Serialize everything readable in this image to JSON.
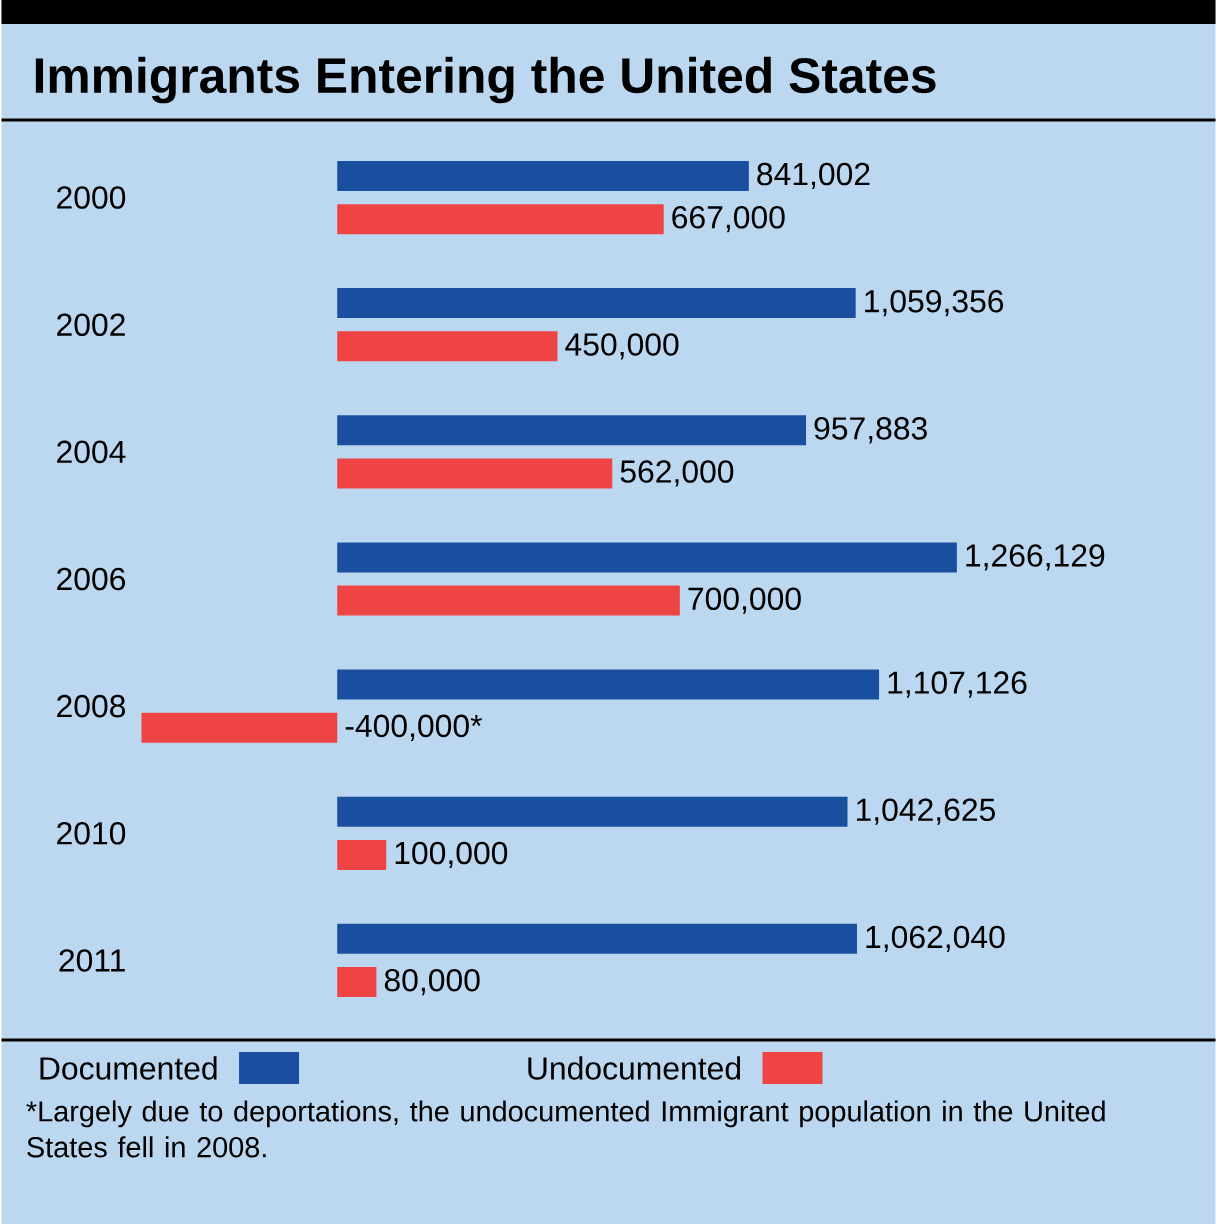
{
  "chart_data": {
    "type": "bar",
    "orientation": "horizontal",
    "title": "Immigrants Entering the United States",
    "categories": [
      "2000",
      "2002",
      "2004",
      "2006",
      "2008",
      "2010",
      "2011"
    ],
    "series": [
      {
        "name": "Documented",
        "color": "#1a4f9f",
        "values": [
          841002,
          1059356,
          957883,
          1266129,
          1107126,
          1042625,
          1062040
        ],
        "value_labels": [
          "841,002",
          "1,059,356",
          "957,883",
          "1,266,129",
          "1,107,126",
          "1,042,625",
          "1,062,040"
        ]
      },
      {
        "name": "Undocumented",
        "color": "#ee4444",
        "values": [
          667000,
          450000,
          562000,
          700000,
          -400000,
          100000,
          80000
        ],
        "value_labels": [
          "667,000",
          "450,000",
          "562,000",
          "700,000",
          "-400,000*",
          "100,000",
          "80,000"
        ]
      }
    ],
    "legend": "bottom",
    "annotations": [
      "*Largely due to deportations, the undocumented Immigrant population in the United States fell in 2008."
    ]
  }
}
